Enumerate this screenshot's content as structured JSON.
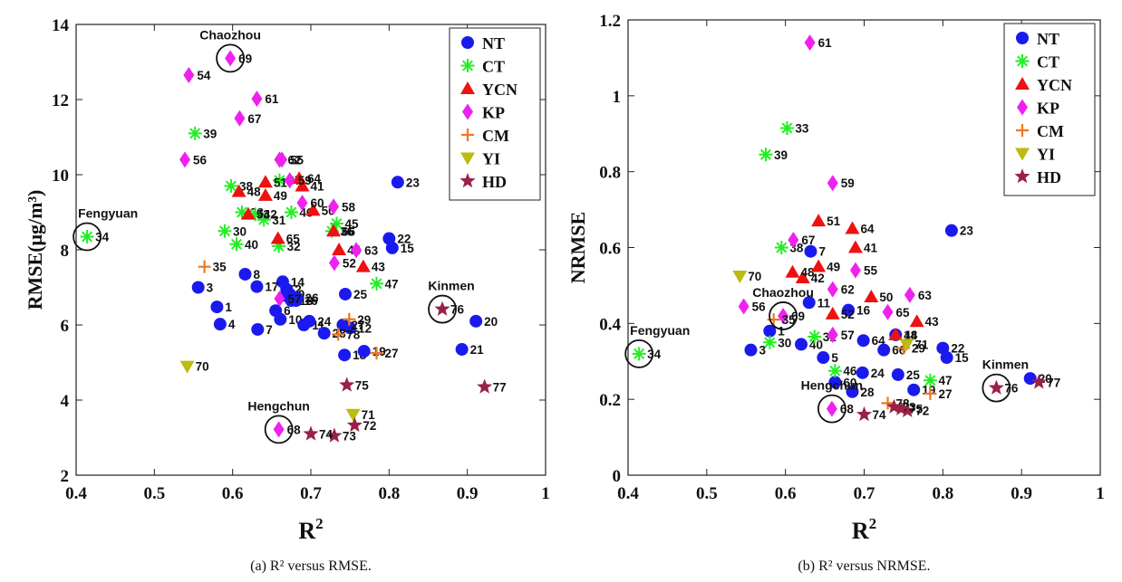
{
  "chart_data": [
    {
      "type": "scatter",
      "caption": "(a) R² versus RMSE.",
      "xlabel": "R²",
      "ylabel": "RMSE(μg/m³)",
      "xlim": [
        0.4,
        1
      ],
      "ylim": [
        2,
        14
      ],
      "xticks": [
        "0.4",
        "0.5",
        "0.6",
        "0.7",
        "0.8",
        "0.9",
        "1"
      ],
      "yticks": [
        "2",
        "4",
        "6",
        "8",
        "10",
        "12",
        "14"
      ],
      "grid": false,
      "legend_position": "top-right",
      "legend": [
        "NT",
        "CT",
        "YCN",
        "KP",
        "CM",
        "YI",
        "HD"
      ],
      "highlights": [
        {
          "name": "Chaozhou",
          "x": 0.597,
          "y": 13.1
        },
        {
          "name": "Fengyuan",
          "x": 0.414,
          "y": 8.35
        },
        {
          "name": "Kinmen",
          "x": 0.868,
          "y": 6.42
        },
        {
          "name": "Hengchun",
          "x": 0.659,
          "y": 3.22
        }
      ],
      "series": [
        {
          "name": "NT",
          "points": [
            {
              "label": "1",
              "x": 0.58,
              "y": 6.48
            },
            {
              "label": "2",
              "x": 0.669,
              "y": 6.95
            },
            {
              "label": "3",
              "x": 0.556,
              "y": 7.0
            },
            {
              "label": "4",
              "x": 0.584,
              "y": 6.02
            },
            {
              "label": "5",
              "x": 0.668,
              "y": 6.78
            },
            {
              "label": "6",
              "x": 0.655,
              "y": 6.38
            },
            {
              "label": "7",
              "x": 0.632,
              "y": 5.88
            },
            {
              "label": "8",
              "x": 0.616,
              "y": 7.35
            },
            {
              "label": "9",
              "x": 0.673,
              "y": 6.82
            },
            {
              "label": "10",
              "x": 0.661,
              "y": 6.15
            },
            {
              "label": "11",
              "x": 0.691,
              "y": 6.0
            },
            {
              "label": "12",
              "x": 0.75,
              "y": 5.92
            },
            {
              "label": "13",
              "x": 0.675,
              "y": 6.65
            },
            {
              "label": "14",
              "x": 0.664,
              "y": 7.15
            },
            {
              "label": "15",
              "x": 0.804,
              "y": 8.05
            },
            {
              "label": "16",
              "x": 0.681,
              "y": 6.65
            },
            {
              "label": "17",
              "x": 0.631,
              "y": 7.02
            },
            {
              "label": "18",
              "x": 0.743,
              "y": 5.2
            },
            {
              "label": "19",
              "x": 0.768,
              "y": 5.3
            },
            {
              "label": "20",
              "x": 0.911,
              "y": 6.1
            },
            {
              "label": "21",
              "x": 0.893,
              "y": 5.35
            },
            {
              "label": "22",
              "x": 0.8,
              "y": 8.3
            },
            {
              "label": "23",
              "x": 0.811,
              "y": 9.8
            },
            {
              "label": "24",
              "x": 0.698,
              "y": 6.1
            },
            {
              "label": "25",
              "x": 0.744,
              "y": 6.82
            },
            {
              "label": "26",
              "x": 0.682,
              "y": 6.72
            },
            {
              "label": "27",
              "x": 0.741,
              "y": 6.0
            },
            {
              "label": "28",
              "x": 0.717,
              "y": 5.78
            }
          ]
        },
        {
          "name": "CT",
          "points": [
            {
              "label": "30",
              "x": 0.59,
              "y": 8.5
            },
            {
              "label": "31",
              "x": 0.64,
              "y": 8.8
            },
            {
              "label": "32",
              "x": 0.659,
              "y": 8.1
            },
            {
              "label": "33",
              "x": 0.612,
              "y": 9.0
            },
            {
              "label": "34",
              "x": 0.414,
              "y": 8.35
            },
            {
              "label": "36",
              "x": 0.727,
              "y": 8.5
            },
            {
              "label": "37",
              "x": 0.66,
              "y": 9.85
            },
            {
              "label": "38",
              "x": 0.598,
              "y": 9.7
            },
            {
              "label": "39",
              "x": 0.552,
              "y": 11.1
            },
            {
              "label": "40",
              "x": 0.605,
              "y": 8.15
            },
            {
              "label": "42",
              "x": 0.629,
              "y": 8.95
            },
            {
              "label": "45",
              "x": 0.733,
              "y": 8.7
            },
            {
              "label": "46",
              "x": 0.675,
              "y": 9.0
            },
            {
              "label": "47",
              "x": 0.784,
              "y": 7.1
            }
          ]
        },
        {
          "name": "YCN",
          "points": [
            {
              "label": "41",
              "x": 0.689,
              "y": 9.7
            },
            {
              "label": "43",
              "x": 0.767,
              "y": 7.55
            },
            {
              "label": "44",
              "x": 0.736,
              "y": 8.0
            },
            {
              "label": "48",
              "x": 0.608,
              "y": 9.55
            },
            {
              "label": "49",
              "x": 0.642,
              "y": 9.45
            },
            {
              "label": "50",
              "x": 0.703,
              "y": 9.05
            },
            {
              "label": "51",
              "x": 0.642,
              "y": 9.8
            },
            {
              "label": "53",
              "x": 0.62,
              "y": 8.95
            },
            {
              "label": "64",
              "x": 0.685,
              "y": 9.9
            },
            {
              "label": "65",
              "x": 0.658,
              "y": 8.3
            },
            {
              "label": "66",
              "x": 0.729,
              "y": 8.5
            }
          ]
        },
        {
          "name": "KP",
          "points": [
            {
              "label": "52",
              "x": 0.73,
              "y": 7.65
            },
            {
              "label": "54",
              "x": 0.544,
              "y": 12.65
            },
            {
              "label": "55",
              "x": 0.663,
              "y": 10.4
            },
            {
              "label": "56",
              "x": 0.539,
              "y": 10.4
            },
            {
              "label": "57",
              "x": 0.66,
              "y": 6.7
            },
            {
              "label": "58",
              "x": 0.729,
              "y": 9.15
            },
            {
              "label": "59",
              "x": 0.673,
              "y": 9.85
            },
            {
              "label": "60",
              "x": 0.689,
              "y": 9.25
            },
            {
              "label": "61",
              "x": 0.631,
              "y": 12.02
            },
            {
              "label": "62",
              "x": 0.66,
              "y": 10.4
            },
            {
              "label": "63",
              "x": 0.758,
              "y": 7.99
            },
            {
              "label": "67",
              "x": 0.609,
              "y": 11.5
            },
            {
              "label": "68",
              "x": 0.659,
              "y": 3.22
            },
            {
              "label": "69",
              "x": 0.597,
              "y": 13.1
            }
          ]
        },
        {
          "name": "CM",
          "points": [
            {
              "label": "27",
              "x": 0.784,
              "y": 5.25
            },
            {
              "label": "29",
              "x": 0.749,
              "y": 6.15
            },
            {
              "label": "35",
              "x": 0.564,
              "y": 7.55
            },
            {
              "label": "78",
              "x": 0.735,
              "y": 5.75
            }
          ]
        },
        {
          "name": "YI",
          "points": [
            {
              "label": "70",
              "x": 0.542,
              "y": 4.9
            },
            {
              "label": "71",
              "x": 0.754,
              "y": 3.62
            }
          ]
        },
        {
          "name": "HD",
          "points": [
            {
              "label": "72",
              "x": 0.756,
              "y": 3.33
            },
            {
              "label": "73",
              "x": 0.73,
              "y": 3.05
            },
            {
              "label": "74",
              "x": 0.7,
              "y": 3.1
            },
            {
              "label": "75",
              "x": 0.746,
              "y": 4.4
            },
            {
              "label": "76",
              "x": 0.868,
              "y": 6.42
            },
            {
              "label": "77",
              "x": 0.922,
              "y": 4.35
            }
          ]
        }
      ]
    },
    {
      "type": "scatter",
      "caption": "(b) R² versus NRMSE.",
      "xlabel": "R²",
      "ylabel": "NRMSE",
      "xlim": [
        0.4,
        1
      ],
      "ylim": [
        0,
        1.2
      ],
      "xticks": [
        "0.4",
        "0.5",
        "0.6",
        "0.7",
        "0.8",
        "0.9",
        "1"
      ],
      "yticks": [
        "0",
        "0.2",
        "0.4",
        "0.6",
        "0.8",
        "1",
        "1.2"
      ],
      "grid": false,
      "legend_position": "top-right",
      "legend": [
        "NT",
        "CT",
        "YCN",
        "KP",
        "CM",
        "YI",
        "HD"
      ],
      "highlights": [
        {
          "name": "Chaozhou",
          "x": 0.597,
          "y": 0.42
        },
        {
          "name": "Fengyuan",
          "x": 0.414,
          "y": 0.32
        },
        {
          "name": "Kinmen",
          "x": 0.868,
          "y": 0.23
        },
        {
          "name": "Hengchun",
          "x": 0.659,
          "y": 0.175
        }
      ],
      "series": [
        {
          "name": "NT",
          "points": [
            {
              "label": "1",
              "x": 0.58,
              "y": 0.38
            },
            {
              "label": "3",
              "x": 0.556,
              "y": 0.33
            },
            {
              "label": "5",
              "x": 0.648,
              "y": 0.31
            },
            {
              "label": "7",
              "x": 0.632,
              "y": 0.59
            },
            {
              "label": "11",
              "x": 0.63,
              "y": 0.455
            },
            {
              "label": "15",
              "x": 0.805,
              "y": 0.31
            },
            {
              "label": "16",
              "x": 0.68,
              "y": 0.435
            },
            {
              "label": "18",
              "x": 0.74,
              "y": 0.37
            },
            {
              "label": "19",
              "x": 0.763,
              "y": 0.225
            },
            {
              "label": "20",
              "x": 0.911,
              "y": 0.255
            },
            {
              "label": "22",
              "x": 0.8,
              "y": 0.335
            },
            {
              "label": "23",
              "x": 0.811,
              "y": 0.645
            },
            {
              "label": "24",
              "x": 0.698,
              "y": 0.27
            },
            {
              "label": "25",
              "x": 0.743,
              "y": 0.265
            },
            {
              "label": "28",
              "x": 0.685,
              "y": 0.22
            },
            {
              "label": "40",
              "x": 0.62,
              "y": 0.345
            },
            {
              "label": "60",
              "x": 0.663,
              "y": 0.245
            },
            {
              "label": "64",
              "x": 0.699,
              "y": 0.355
            },
            {
              "label": "66",
              "x": 0.725,
              "y": 0.33
            }
          ]
        },
        {
          "name": "CT",
          "points": [
            {
              "label": "30",
              "x": 0.58,
              "y": 0.35
            },
            {
              "label": "31",
              "x": 0.637,
              "y": 0.365
            },
            {
              "label": "33",
              "x": 0.602,
              "y": 0.915
            },
            {
              "label": "34",
              "x": 0.414,
              "y": 0.32
            },
            {
              "label": "38",
              "x": 0.595,
              "y": 0.6
            },
            {
              "label": "39",
              "x": 0.575,
              "y": 0.845
            },
            {
              "label": "46",
              "x": 0.663,
              "y": 0.275
            },
            {
              "label": "47",
              "x": 0.784,
              "y": 0.25
            }
          ]
        },
        {
          "name": "YCN",
          "points": [
            {
              "label": "41",
              "x": 0.689,
              "y": 0.6
            },
            {
              "label": "42",
              "x": 0.622,
              "y": 0.52
            },
            {
              "label": "43",
              "x": 0.767,
              "y": 0.405
            },
            {
              "label": "44",
              "x": 0.74,
              "y": 0.37
            },
            {
              "label": "48",
              "x": 0.609,
              "y": 0.535
            },
            {
              "label": "49",
              "x": 0.642,
              "y": 0.55
            },
            {
              "label": "50",
              "x": 0.709,
              "y": 0.47
            },
            {
              "label": "51",
              "x": 0.642,
              "y": 0.67
            },
            {
              "label": "52",
              "x": 0.66,
              "y": 0.425
            },
            {
              "label": "64",
              "x": 0.685,
              "y": 0.65
            }
          ]
        },
        {
          "name": "KP",
          "points": [
            {
              "label": "55",
              "x": 0.689,
              "y": 0.54
            },
            {
              "label": "56",
              "x": 0.547,
              "y": 0.445
            },
            {
              "label": "57",
              "x": 0.66,
              "y": 0.37
            },
            {
              "label": "59",
              "x": 0.66,
              "y": 0.77
            },
            {
              "label": "61",
              "x": 0.631,
              "y": 1.14
            },
            {
              "label": "62",
              "x": 0.66,
              "y": 0.49
            },
            {
              "label": "63",
              "x": 0.758,
              "y": 0.475
            },
            {
              "label": "65",
              "x": 0.73,
              "y": 0.43
            },
            {
              "label": "67",
              "x": 0.61,
              "y": 0.62
            },
            {
              "label": "68",
              "x": 0.659,
              "y": 0.175
            },
            {
              "label": "69",
              "x": 0.597,
              "y": 0.42
            }
          ]
        },
        {
          "name": "CM",
          "points": [
            {
              "label": "27",
              "x": 0.784,
              "y": 0.215
            },
            {
              "label": "29",
              "x": 0.75,
              "y": 0.335
            },
            {
              "label": "35",
              "x": 0.585,
              "y": 0.41
            },
            {
              "label": "78",
              "x": 0.73,
              "y": 0.19
            }
          ]
        },
        {
          "name": "YI",
          "points": [
            {
              "label": "70",
              "x": 0.542,
              "y": 0.525
            },
            {
              "label": "71",
              "x": 0.754,
              "y": 0.345
            }
          ]
        },
        {
          "name": "HD",
          "points": [
            {
              "label": "72",
              "x": 0.755,
              "y": 0.17
            },
            {
              "label": "73",
              "x": 0.738,
              "y": 0.18
            },
            {
              "label": "74",
              "x": 0.7,
              "y": 0.16
            },
            {
              "label": "75",
              "x": 0.747,
              "y": 0.175
            },
            {
              "label": "76",
              "x": 0.868,
              "y": 0.23
            },
            {
              "label": "77",
              "x": 0.922,
              "y": 0.245
            }
          ]
        }
      ]
    }
  ],
  "colors": {
    "NT": "#1a1aee",
    "CT": "#22ee22",
    "YCN": "#ee1111",
    "KP": "#ee22ee",
    "CM": "#ee7722",
    "YI": "#bbbb11",
    "HD": "#992244"
  },
  "markers": {
    "NT": "circle",
    "CT": "asterisk",
    "YCN": "triangle-up",
    "KP": "diamond",
    "CM": "plus",
    "YI": "triangle-down",
    "HD": "star"
  }
}
